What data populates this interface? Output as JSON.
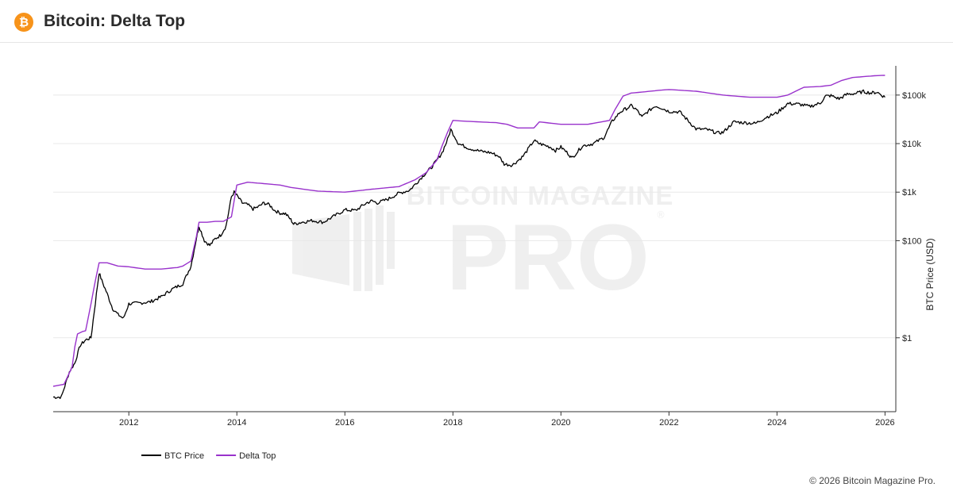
{
  "header": {
    "title": "Bitcoin: Delta Top",
    "logo_icon": "bitcoin-logo-icon",
    "logo_glyph": "₿",
    "logo_color": "#f7931a"
  },
  "watermark": {
    "line1": "BITCOIN MAGAZINE",
    "line2": "PRO",
    "registered": "®"
  },
  "footer": {
    "copyright": "© 2026 Bitcoin Magazine Pro."
  },
  "chart_data": {
    "type": "line",
    "title": "",
    "xlabel": "",
    "ylabel": "BTC Price (USD)",
    "y_scale": "log",
    "xlim": [
      2010.6,
      2026.2
    ],
    "ylim": [
      0.03,
      400000
    ],
    "x_ticks": [
      2012,
      2014,
      2016,
      2018,
      2020,
      2022,
      2024,
      2026
    ],
    "x_tick_labels": [
      "2012",
      "2014",
      "2016",
      "2018",
      "2020",
      "2022",
      "2024",
      "2026"
    ],
    "y_ticks": [
      1,
      100,
      1000,
      10000,
      100000
    ],
    "y_tick_labels": [
      "$1",
      "$100",
      "$1k",
      "$10k",
      "$100k"
    ],
    "grid": true,
    "legend_position": "bottom-left",
    "series": [
      {
        "name": "BTC Price",
        "color": "#000000",
        "x": [
          2010.6,
          2010.75,
          2010.9,
          2011.0,
          2011.1,
          2011.2,
          2011.3,
          2011.4,
          2011.45,
          2011.5,
          2011.6,
          2011.7,
          2011.8,
          2011.9,
          2012.0,
          2012.2,
          2012.4,
          2012.6,
          2012.8,
          2013.0,
          2013.15,
          2013.25,
          2013.3,
          2013.4,
          2013.5,
          2013.6,
          2013.7,
          2013.8,
          2013.9,
          2013.95,
          2014.0,
          2014.1,
          2014.2,
          2014.3,
          2014.4,
          2014.5,
          2014.6,
          2014.7,
          2014.8,
          2014.9,
          2015.0,
          2015.05,
          2015.2,
          2015.4,
          2015.6,
          2015.8,
          2016.0,
          2016.2,
          2016.4,
          2016.5,
          2016.6,
          2016.8,
          2017.0,
          2017.2,
          2017.4,
          2017.5,
          2017.6,
          2017.7,
          2017.8,
          2017.9,
          2017.96,
          2018.05,
          2018.1,
          2018.3,
          2018.5,
          2018.7,
          2018.85,
          2018.95,
          2019.1,
          2019.3,
          2019.5,
          2019.6,
          2019.8,
          2019.9,
          2020.0,
          2020.15,
          2020.2,
          2020.4,
          2020.6,
          2020.8,
          2020.95,
          2021.1,
          2021.3,
          2021.4,
          2021.5,
          2021.6,
          2021.75,
          2021.85,
          2022.0,
          2022.2,
          2022.35,
          2022.5,
          2022.7,
          2022.9,
          2023.0,
          2023.2,
          2023.4,
          2023.6,
          2023.8,
          2024.0,
          2024.2,
          2024.4,
          2024.6,
          2024.8,
          2024.9,
          2025.0,
          2025.15,
          2025.3,
          2025.45,
          2025.6,
          2025.75,
          2025.85,
          2026.0
        ],
        "y": [
          0.06,
          0.06,
          0.2,
          0.3,
          0.7,
          0.9,
          1.0,
          8,
          22,
          15,
          8,
          4,
          3,
          2.5,
          5,
          5.2,
          5.5,
          7,
          10,
          13,
          30,
          110,
          200,
          100,
          80,
          110,
          130,
          200,
          800,
          1000,
          850,
          600,
          550,
          450,
          500,
          600,
          550,
          420,
          370,
          360,
          270,
          220,
          240,
          260,
          240,
          320,
          430,
          420,
          600,
          660,
          600,
          720,
          950,
          1100,
          1900,
          2500,
          3200,
          4500,
          6500,
          12000,
          19500,
          13000,
          10000,
          8000,
          7000,
          6500,
          5500,
          3800,
          3600,
          5500,
          11500,
          10000,
          8500,
          7200,
          8500,
          6000,
          5000,
          9000,
          10000,
          13500,
          29000,
          45000,
          60000,
          50000,
          35000,
          45000,
          60000,
          55000,
          46000,
          45000,
          30000,
          20000,
          19500,
          16500,
          17000,
          28000,
          27000,
          26000,
          35000,
          43000,
          67000,
          65000,
          58000,
          68000,
          95000,
          97000,
          84000,
          104000,
          108000,
          118000,
          110000,
          115000,
          90000
        ]
      },
      {
        "name": "Delta Top",
        "color": "#9932cc",
        "x": [
          2010.6,
          2010.8,
          2010.95,
          2011.0,
          2011.05,
          2011.15,
          2011.2,
          2011.3,
          2011.38,
          2011.45,
          2011.6,
          2011.8,
          2012.0,
          2012.3,
          2012.6,
          2012.9,
          2013.0,
          2013.15,
          2013.25,
          2013.3,
          2013.45,
          2013.6,
          2013.75,
          2013.9,
          2014.0,
          2014.2,
          2014.5,
          2014.8,
          2015.0,
          2015.5,
          2016.0,
          2016.5,
          2017.0,
          2017.3,
          2017.5,
          2017.7,
          2017.8,
          2017.9,
          2018.0,
          2018.2,
          2018.5,
          2018.8,
          2019.0,
          2019.2,
          2019.5,
          2019.6,
          2020.0,
          2020.5,
          2020.9,
          2021.0,
          2021.15,
          2021.3,
          2021.5,
          2021.8,
          2022.0,
          2022.5,
          2023.0,
          2023.5,
          2024.0,
          2024.2,
          2024.5,
          2024.8,
          2025.0,
          2025.2,
          2025.4,
          2025.6,
          2025.8,
          2026.0
        ],
        "y": [
          0.1,
          0.11,
          0.25,
          0.65,
          1.2,
          1.35,
          1.4,
          5,
          15,
          35,
          35,
          30,
          29,
          26,
          26,
          28,
          30,
          38,
          120,
          240,
          240,
          250,
          250,
          310,
          1400,
          1600,
          1500,
          1400,
          1250,
          1050,
          1000,
          1150,
          1300,
          1800,
          2500,
          4500,
          9000,
          17000,
          30000,
          29000,
          28000,
          27000,
          25000,
          21000,
          21000,
          28000,
          25000,
          25000,
          30000,
          50000,
          95000,
          110000,
          115000,
          125000,
          130000,
          120000,
          100000,
          90000,
          90000,
          100000,
          145000,
          150000,
          160000,
          200000,
          230000,
          240000,
          250000,
          255000
        ]
      }
    ]
  }
}
